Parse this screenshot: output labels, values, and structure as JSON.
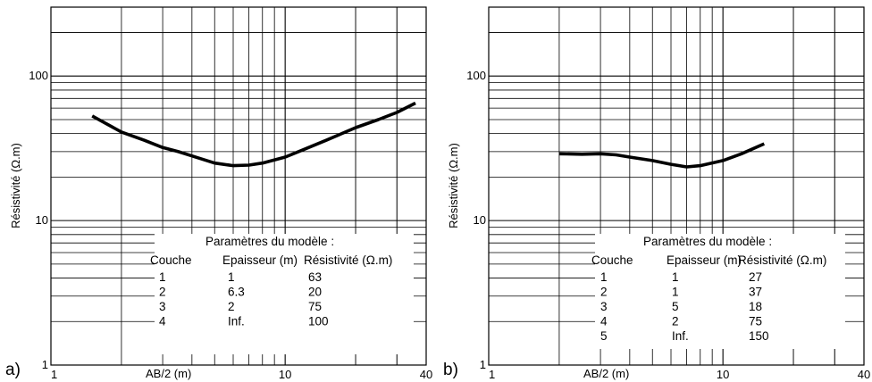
{
  "chart_data": [
    {
      "type": "line",
      "panel_label": "a)",
      "xlabel": "AB/2 (m)",
      "ylabel": "Résistivité (Ω.m)",
      "xscale": "log",
      "yscale": "log",
      "xlim": [
        1,
        40
      ],
      "ylim": [
        1,
        300
      ],
      "xticks": [
        "1",
        "10",
        "40"
      ],
      "yticks": [
        "1",
        "10",
        "100"
      ],
      "grid": true,
      "series": [
        {
          "x": [
            1.5,
            2.0,
            2.5,
            3.0,
            3.5,
            4.0,
            5.0,
            6.0,
            7.0,
            8.0,
            10.0,
            12.0,
            15.0,
            20.0,
            25.0,
            30.0,
            36.0
          ],
          "y": [
            53,
            41,
            36,
            32,
            30,
            28,
            25,
            24,
            24.2,
            25,
            27.5,
            31,
            36,
            44,
            50,
            56,
            65
          ]
        }
      ],
      "table": {
        "title": "Paramètres du modèle :",
        "columns": [
          "Couche",
          "Epaisseur (m)",
          "Résistivité (Ω.m)"
        ],
        "rows": [
          [
            "1",
            "1",
            "63"
          ],
          [
            "2",
            "6.3",
            "20"
          ],
          [
            "3",
            "2",
            "75"
          ],
          [
            "4",
            "Inf.",
            "100"
          ]
        ]
      }
    },
    {
      "type": "line",
      "panel_label": "b)",
      "xlabel": "AB/2 (m)",
      "ylabel": "Résistivité (Ω.m)",
      "xscale": "log",
      "yscale": "log",
      "xlim": [
        1,
        40
      ],
      "ylim": [
        1,
        300
      ],
      "xticks": [
        "1",
        "10",
        "40"
      ],
      "yticks": [
        "1",
        "10",
        "100"
      ],
      "grid": true,
      "series": [
        {
          "x": [
            2.0,
            2.5,
            3.0,
            3.5,
            4.0,
            5.0,
            6.0,
            7.0,
            8.0,
            10.0,
            12.0,
            15.0
          ],
          "y": [
            29,
            28.8,
            29,
            28.5,
            27.5,
            26,
            24.5,
            23.5,
            24,
            26,
            29,
            34
          ]
        }
      ],
      "table": {
        "title": "Paramètres du modèle :",
        "columns": [
          "Couche",
          "Epaisseur (m)",
          "Résistivité (Ω.m)"
        ],
        "rows": [
          [
            "1",
            "1",
            "27"
          ],
          [
            "2",
            "1",
            "37"
          ],
          [
            "3",
            "5",
            "18"
          ],
          [
            "4",
            "2",
            "75"
          ],
          [
            "5",
            "Inf.",
            "150"
          ]
        ]
      }
    }
  ]
}
